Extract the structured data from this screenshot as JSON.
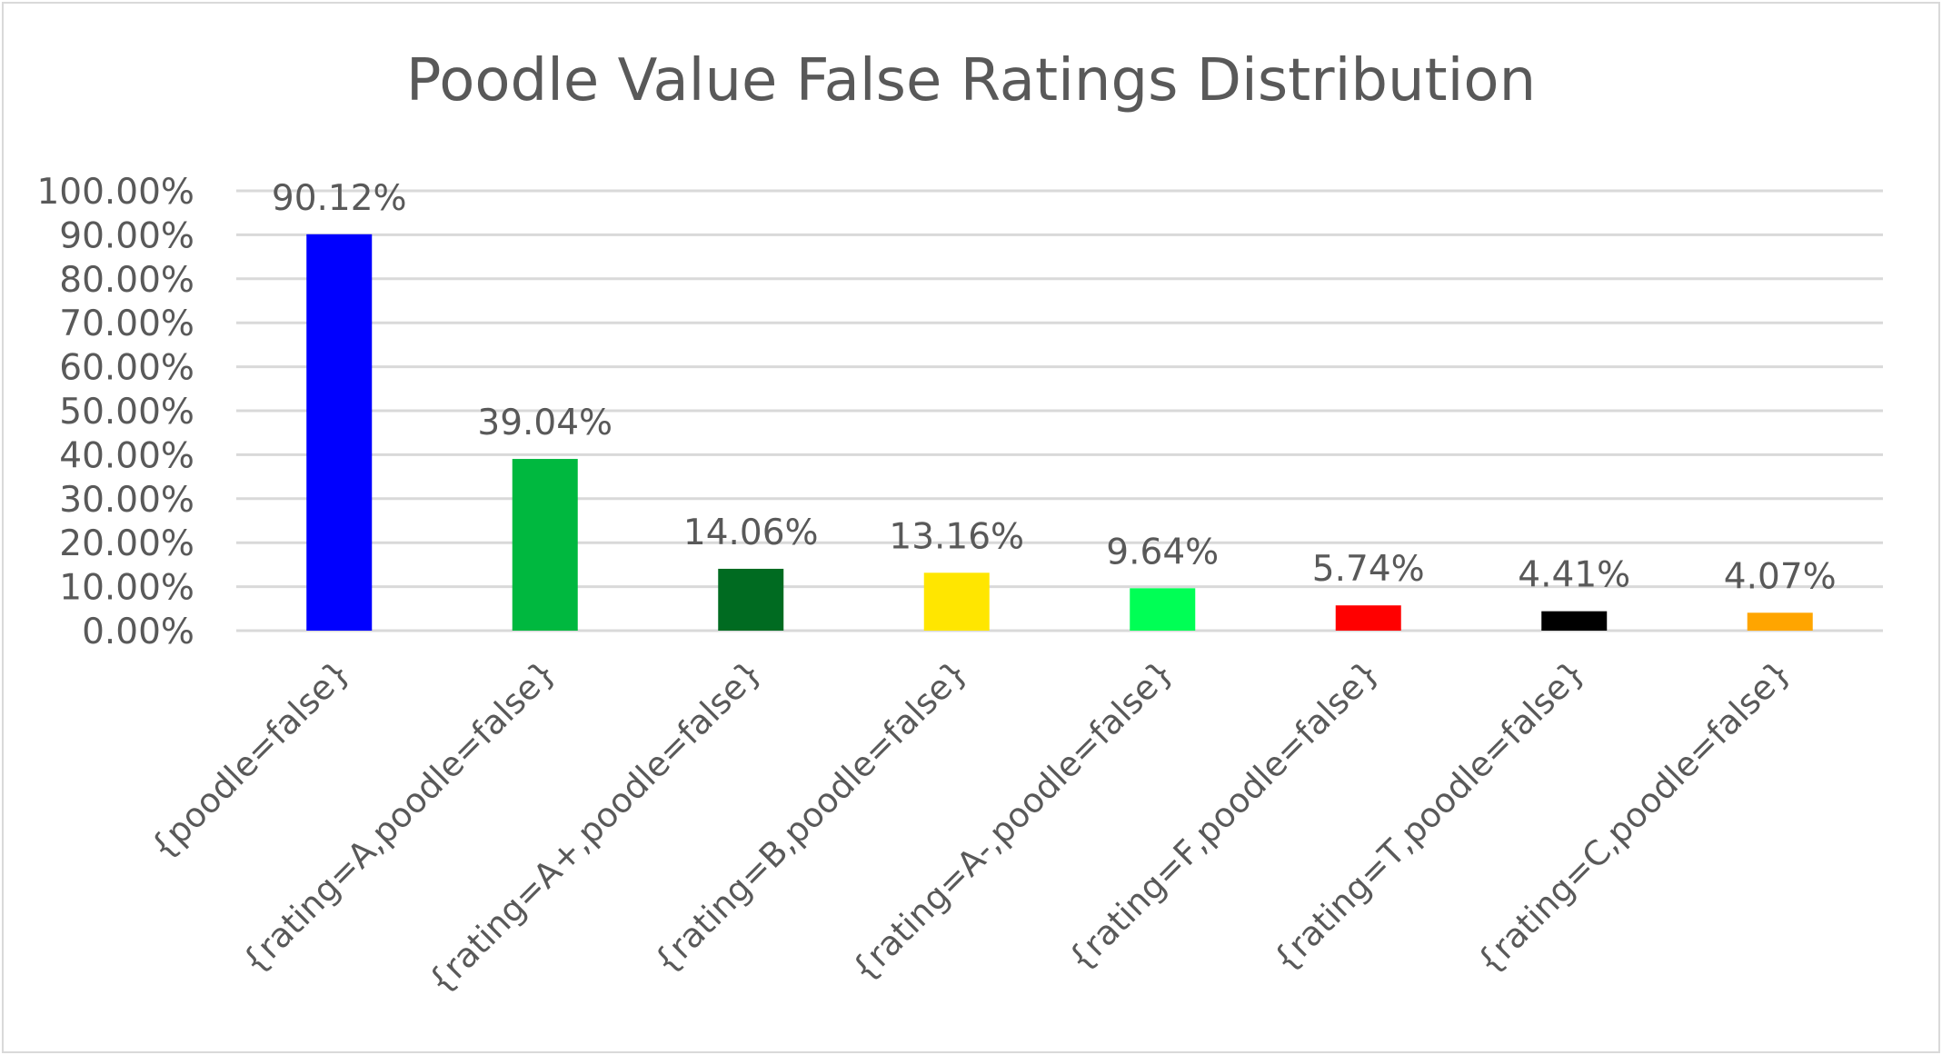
{
  "chart_data": {
    "type": "bar",
    "title": "Poodle Value False Ratings Distribution",
    "xlabel": "",
    "ylabel": "",
    "ylim": [
      0,
      100
    ],
    "yticks": [
      "0.00%",
      "10.00%",
      "20.00%",
      "30.00%",
      "40.00%",
      "50.00%",
      "60.00%",
      "70.00%",
      "80.00%",
      "90.00%",
      "100.00%"
    ],
    "grid": true,
    "legend": "none",
    "categories": [
      "{poodle=false}",
      "{rating=A,poodle=false}",
      "{rating=A+,poodle=false}",
      "{rating=B,poodle=false}",
      "{rating=A-,poodle=false}",
      "{rating=F,poodle=false}",
      "{rating=T,poodle=false}",
      "{rating=C,poodle=false}"
    ],
    "values": [
      90.12,
      39.04,
      14.06,
      13.16,
      9.64,
      5.74,
      4.41,
      4.07
    ],
    "value_labels": [
      "90.12%",
      "39.04%",
      "14.06%",
      "13.16%",
      "9.64%",
      "5.74%",
      "4.41%",
      "4.07%"
    ],
    "colors": [
      "#0000ff",
      "#00b83f",
      "#006b21",
      "#ffe600",
      "#00ff55",
      "#ff0000",
      "#000000",
      "#ffa500"
    ]
  }
}
